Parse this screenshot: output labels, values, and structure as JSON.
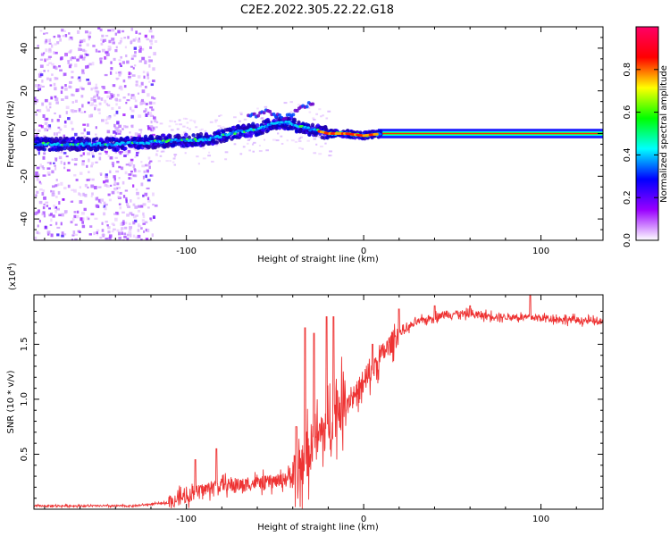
{
  "title": "C2E2.2022.305.22.22.G18",
  "chart_data": [
    {
      "type": "heatmap",
      "xlabel": "Height of straight line (km)",
      "ylabel": "Frequency (Hz)",
      "xlim": [
        -186,
        135
      ],
      "ylim": [
        -50,
        50
      ],
      "xticks": [
        {
          "value": -100,
          "label": "-100"
        },
        {
          "value": 0,
          "label": "0"
        },
        {
          "value": 100,
          "label": "100"
        }
      ],
      "yticks": [
        {
          "value": -40,
          "label": "-40"
        },
        {
          "value": -20,
          "label": "-20"
        },
        {
          "value": 0,
          "label": "0"
        },
        {
          "value": 20,
          "label": "20"
        },
        {
          "value": 40,
          "label": "40"
        }
      ],
      "ridge": {
        "x": [
          -186,
          -160,
          -140,
          -120,
          -100,
          -90,
          -80,
          -70,
          -60,
          -50,
          -42,
          -36,
          -30,
          -25,
          -20,
          -10,
          0,
          10,
          135
        ],
        "y": [
          -5,
          -5,
          -5,
          -4,
          -3,
          -3,
          -1,
          1,
          2,
          5,
          5,
          3,
          2,
          1,
          0,
          0,
          -1,
          0,
          0
        ]
      },
      "colorbar": {
        "label": "Normalized spectral amplitude",
        "range": [
          0,
          1
        ],
        "ticks": [
          {
            "value": 0.0,
            "label": "0.0"
          },
          {
            "value": 0.2,
            "label": "0.2"
          },
          {
            "value": 0.4,
            "label": "0.4"
          },
          {
            "value": 0.6,
            "label": "0.6"
          },
          {
            "value": 0.8,
            "label": "0.8"
          }
        ],
        "colors": [
          "#ffffff",
          "#9900ff",
          "#0000ff",
          "#00ffff",
          "#00ff00",
          "#ffff00",
          "#ff0000",
          "#ff0066"
        ]
      }
    },
    {
      "type": "line",
      "xlabel": "Height of straight line (km)",
      "ylabel": "SNR (10 * v/v)",
      "yscale_note": "(x10",
      "yscale_exp": "4",
      "yscale_close": ")",
      "xlim": [
        -186,
        135
      ],
      "ylim": [
        0,
        1.95
      ],
      "xticks": [
        {
          "value": -100,
          "label": "-100"
        },
        {
          "value": 0,
          "label": "0"
        },
        {
          "value": 100,
          "label": "100"
        }
      ],
      "yticks": [
        {
          "value": 0.5,
          "label": "0.5"
        },
        {
          "value": 1.0,
          "label": "1.0"
        },
        {
          "value": 1.5,
          "label": "1.5"
        }
      ],
      "color": "#ee3333",
      "trend": {
        "x": [
          -186,
          -130,
          -110,
          -100,
          -90,
          -80,
          -70,
          -60,
          -50,
          -40,
          -35,
          -30,
          -25,
          -20,
          -15,
          -10,
          -5,
          0,
          5,
          10,
          20,
          30,
          40,
          50,
          60,
          80,
          100,
          120,
          135
        ],
        "y": [
          0.03,
          0.03,
          0.06,
          0.12,
          0.18,
          0.22,
          0.22,
          0.24,
          0.25,
          0.3,
          0.4,
          0.55,
          0.65,
          0.8,
          0.9,
          0.98,
          1.05,
          1.12,
          1.25,
          1.4,
          1.6,
          1.7,
          1.75,
          1.78,
          1.77,
          1.75,
          1.74,
          1.72,
          1.7
        ]
      },
      "peaks": [
        {
          "x": -95,
          "y": 0.45
        },
        {
          "x": -83,
          "y": 0.55
        },
        {
          "x": -38,
          "y": 0.75
        },
        {
          "x": -33,
          "y": 1.65
        },
        {
          "x": -28,
          "y": 1.6
        },
        {
          "x": -21,
          "y": 1.75
        },
        {
          "x": -17,
          "y": 1.75
        },
        {
          "x": 5,
          "y": 1.5
        },
        {
          "x": 20,
          "y": 1.82
        },
        {
          "x": 40,
          "y": 1.85
        },
        {
          "x": 60,
          "y": 1.85
        },
        {
          "x": 94,
          "y": 1.95
        }
      ]
    }
  ]
}
